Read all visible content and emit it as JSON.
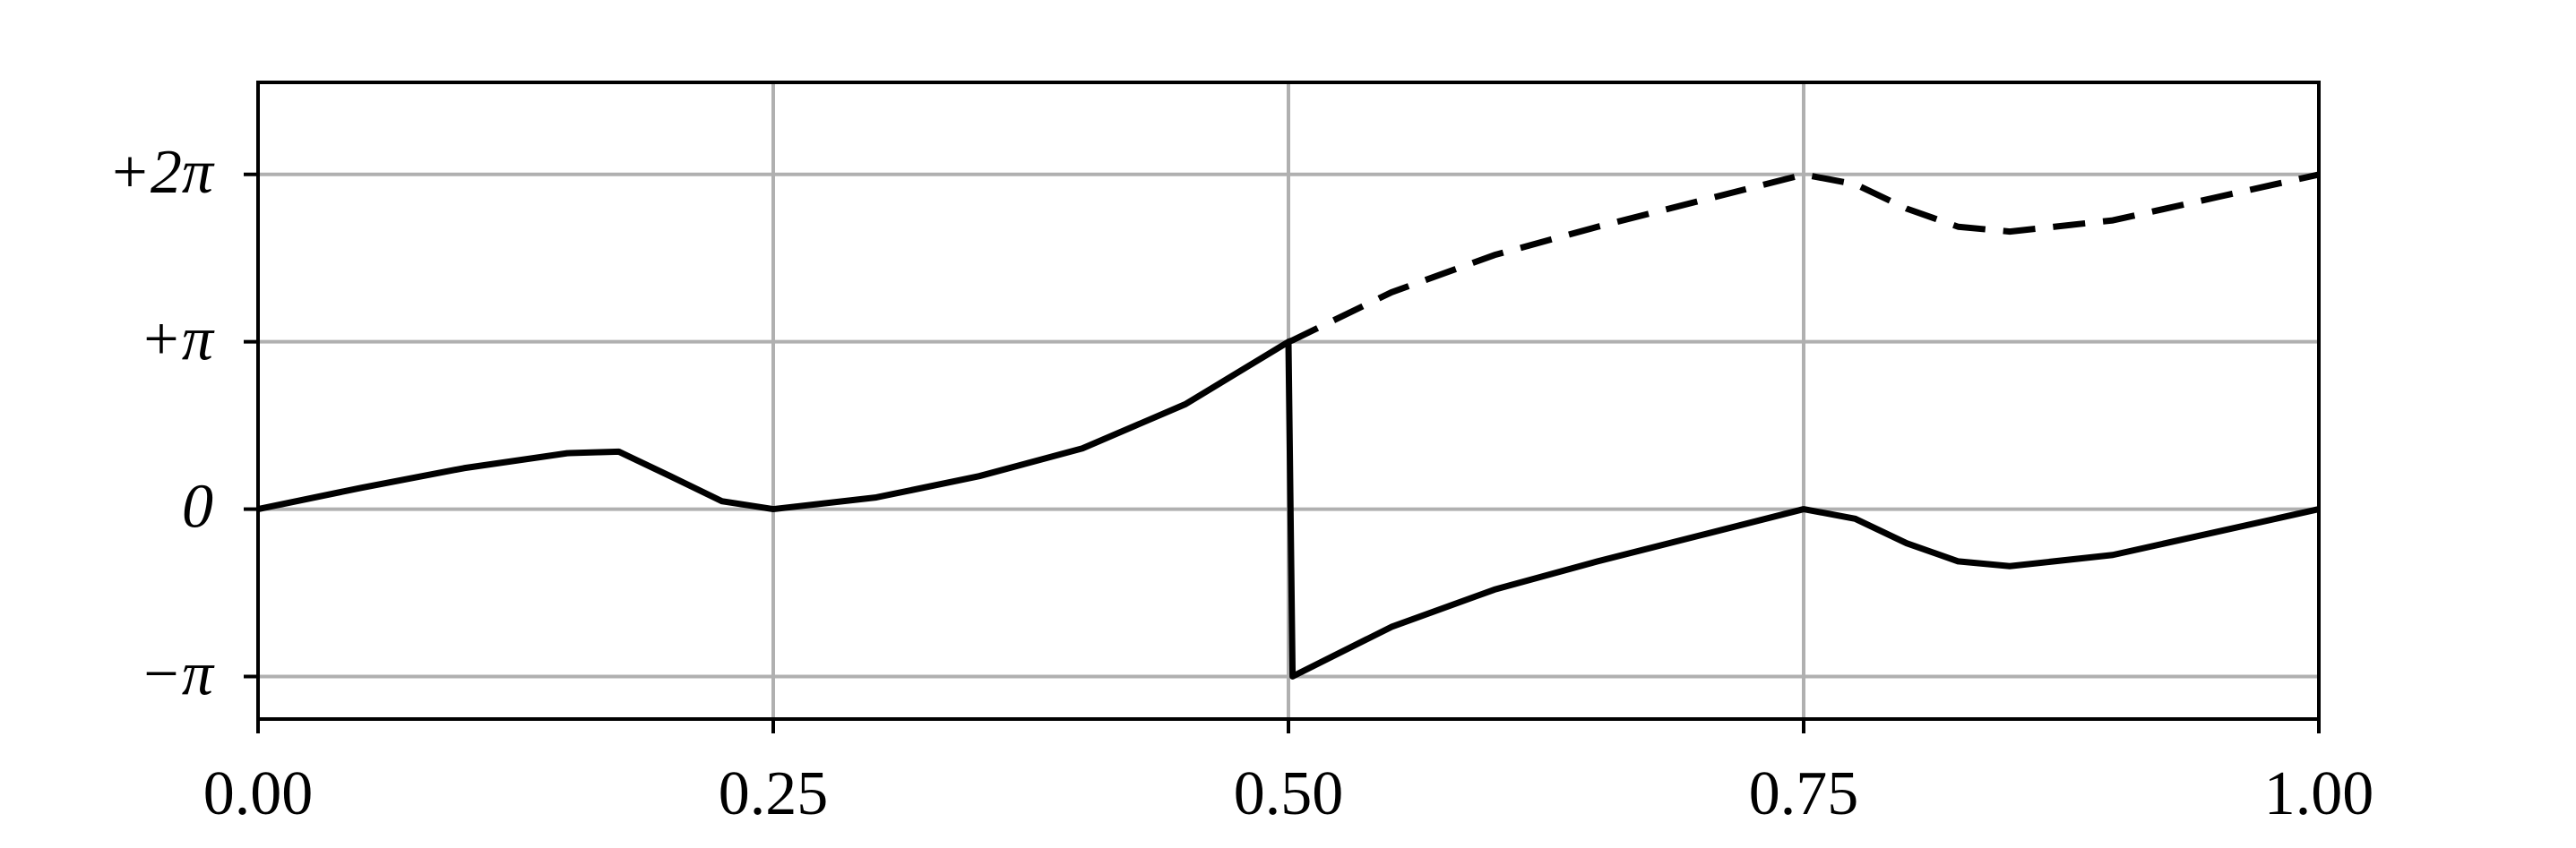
{
  "chart_data": {
    "type": "line",
    "x": [
      0,
      0.05,
      0.1,
      0.15,
      0.175,
      0.2,
      0.225,
      0.25,
      0.3,
      0.35,
      0.4,
      0.45,
      0.5,
      0.502,
      0.55,
      0.6,
      0.65,
      0.7,
      0.75,
      0.775,
      0.8,
      0.825,
      0.85,
      0.9,
      0.95,
      1.0
    ],
    "series": [
      {
        "color": "#000000",
        "dashed": false,
        "values": [
          0,
          0.4,
          0.77,
          1.05,
          1.08,
          0.62,
          0.15,
          0,
          0.22,
          0.62,
          1.14,
          1.97,
          3.14,
          -3.14,
          -2.21,
          -1.51,
          -0.98,
          -0.49,
          0,
          -0.18,
          -0.64,
          -0.98,
          -1.07,
          -0.86,
          -0.43,
          0
        ]
      },
      {
        "color": "#000000",
        "dashed": true,
        "values": [
          null,
          null,
          null,
          null,
          null,
          null,
          null,
          null,
          null,
          null,
          null,
          null,
          3.14,
          3.17,
          4.07,
          4.77,
          5.3,
          5.79,
          6.28,
          6.1,
          5.64,
          5.3,
          5.21,
          5.42,
          5.85,
          6.28
        ]
      }
    ],
    "xlim": [
      0,
      1
    ],
    "ylim": [
      -3.94,
      8.01
    ],
    "xticks": [
      {
        "value": 0,
        "label": "0.00"
      },
      {
        "value": 0.25,
        "label": "0.25"
      },
      {
        "value": 0.5,
        "label": "0.50"
      },
      {
        "value": 0.75,
        "label": "0.75"
      },
      {
        "value": 1,
        "label": "1.00"
      }
    ],
    "yticks": [
      {
        "value": -3.14159,
        "label": "−π"
      },
      0,
      {
        "value": 3.14159,
        "label": "+π"
      },
      {
        "value": 6.28319,
        "label": "+2π"
      }
    ],
    "grid": true
  }
}
